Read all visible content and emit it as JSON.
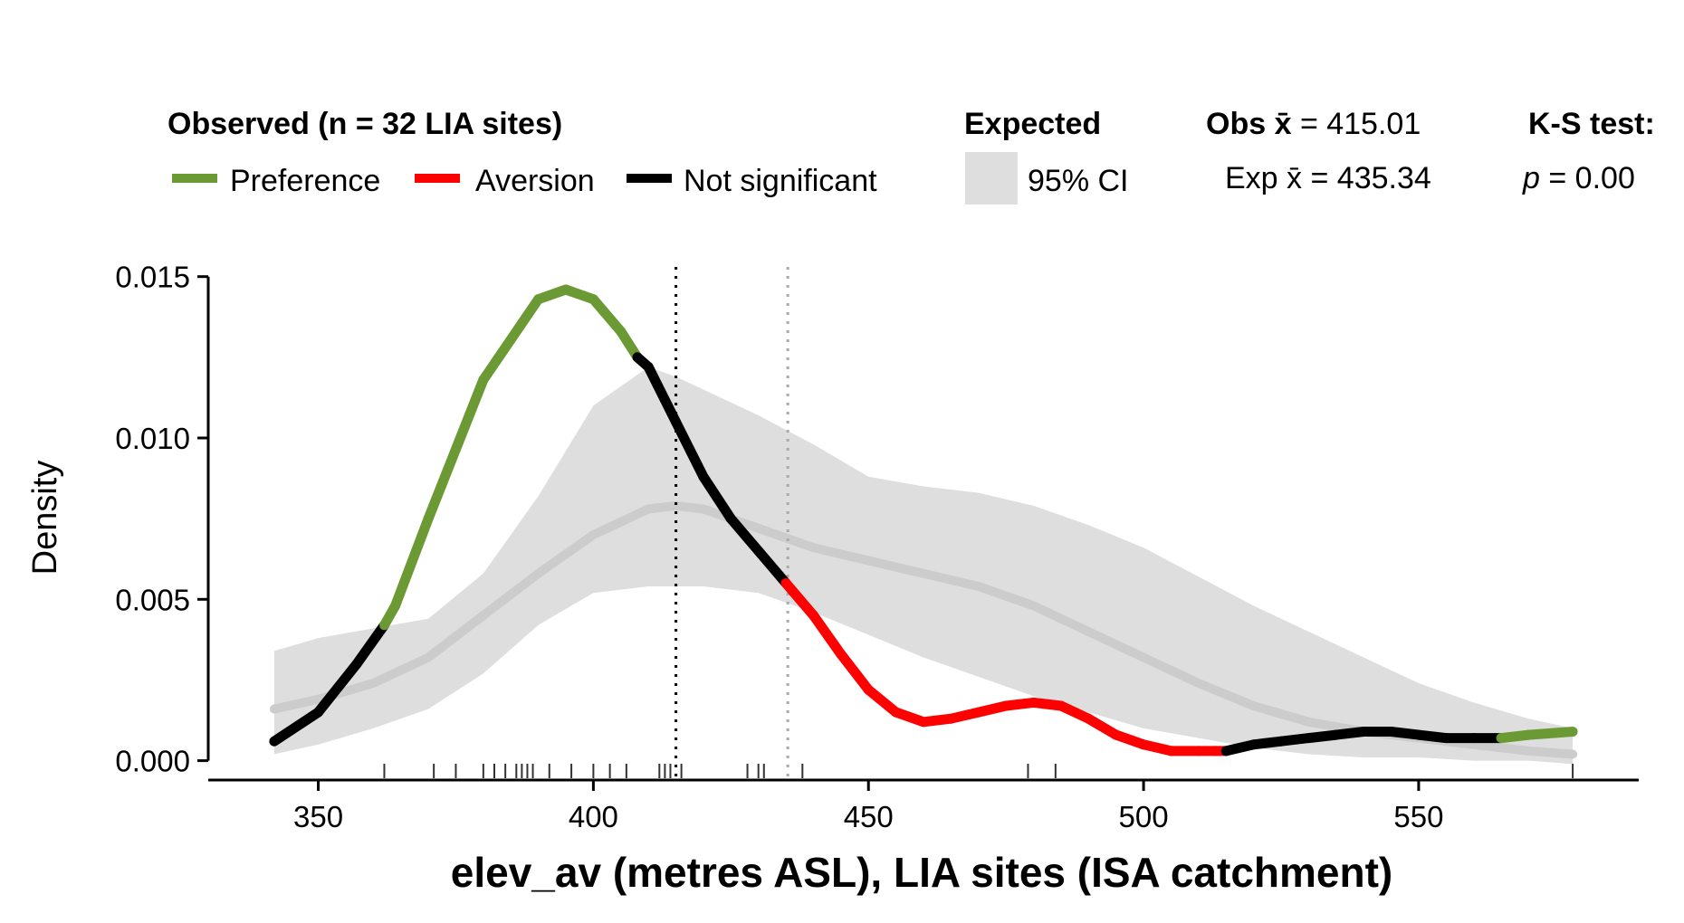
{
  "legend": {
    "observed_title": "Observed (n = 32 LIA sites)",
    "preference_label": "Preference",
    "aversion_label": "Aversion",
    "not_significant_label": "Not significant",
    "expected_title": "Expected",
    "ci_label": "95% CI",
    "obs_mean_prefix": "Obs x̄",
    "obs_mean_value": "= 415.01",
    "exp_mean_prefix": "Exp x̄",
    "exp_mean_value": "= 435.34",
    "ks_title": "K-S test:",
    "ks_p_symbol": "p",
    "ks_p_value": "= 0.00"
  },
  "colors": {
    "preference": "#6b9a35",
    "aversion": "#ff0000",
    "not_significant": "#000000",
    "ci_band": "#dedede",
    "expected_line": "#cccccc",
    "obs_mean_line": "#000000",
    "exp_mean_line": "#aaaaaa"
  },
  "chart_data": {
    "type": "line",
    "xlabel": "elev_av (metres ASL), LIA sites (ISA catchment)",
    "ylabel": "Density",
    "xlim": [
      330,
      590
    ],
    "ylim": [
      -0.0006,
      0.0153
    ],
    "x_ticks": [
      350,
      400,
      450,
      500,
      550
    ],
    "x_tick_labels": [
      "350",
      "400",
      "450",
      "500",
      "550"
    ],
    "y_ticks": [
      0.0,
      0.005,
      0.01,
      0.015
    ],
    "y_tick_labels": [
      "0.000",
      "0.005",
      "0.010",
      "0.015"
    ],
    "grid": false,
    "observed_density": {
      "x": [
        342,
        350,
        357,
        362,
        364,
        370,
        380,
        390,
        395,
        400,
        405,
        408,
        410,
        415,
        420,
        425,
        430,
        435,
        440,
        445,
        450,
        455,
        460,
        465,
        470,
        475,
        480,
        485,
        490,
        495,
        500,
        505,
        510,
        513,
        515,
        520,
        525,
        530,
        535,
        540,
        545,
        550,
        555,
        560,
        565,
        570,
        578
      ],
      "y": [
        0.0006,
        0.0015,
        0.003,
        0.0042,
        0.0048,
        0.0075,
        0.0118,
        0.0143,
        0.0146,
        0.0143,
        0.0133,
        0.0125,
        0.0122,
        0.0105,
        0.0088,
        0.0075,
        0.0065,
        0.0055,
        0.0045,
        0.0033,
        0.0022,
        0.0015,
        0.0012,
        0.0013,
        0.0015,
        0.0017,
        0.0018,
        0.0017,
        0.0013,
        0.0008,
        0.0005,
        0.0003,
        0.0003,
        0.0003,
        0.0003,
        0.0005,
        0.0006,
        0.0007,
        0.0008,
        0.0009,
        0.0009,
        0.0008,
        0.0007,
        0.0007,
        0.0007,
        0.0008,
        0.0009
      ],
      "significance": [
        "not_significant",
        "not_significant",
        "not_significant",
        "not_significant",
        "preference",
        "preference",
        "preference",
        "preference",
        "preference",
        "preference",
        "preference",
        "preference",
        "not_significant",
        "not_significant",
        "not_significant",
        "not_significant",
        "not_significant",
        "not_significant",
        "aversion",
        "aversion",
        "aversion",
        "aversion",
        "aversion",
        "aversion",
        "aversion",
        "aversion",
        "aversion",
        "aversion",
        "aversion",
        "aversion",
        "aversion",
        "aversion",
        "aversion",
        "aversion",
        "aversion",
        "not_significant",
        "not_significant",
        "not_significant",
        "not_significant",
        "not_significant",
        "not_significant",
        "not_significant",
        "not_significant",
        "not_significant",
        "not_significant",
        "preference",
        "preference"
      ]
    },
    "expected_density": {
      "x": [
        342,
        350,
        360,
        370,
        380,
        390,
        400,
        410,
        415,
        420,
        430,
        440,
        450,
        460,
        470,
        480,
        490,
        500,
        510,
        520,
        530,
        540,
        550,
        560,
        570,
        578
      ],
      "y": [
        0.0016,
        0.0019,
        0.0024,
        0.0032,
        0.0045,
        0.0058,
        0.007,
        0.0078,
        0.0079,
        0.0078,
        0.0072,
        0.0066,
        0.0062,
        0.0058,
        0.0054,
        0.0048,
        0.004,
        0.0032,
        0.0024,
        0.0017,
        0.0012,
        0.0009,
        0.0007,
        0.0005,
        0.0003,
        0.0002
      ]
    },
    "ci_lower": [
      0.0002,
      0.0005,
      0.001,
      0.0016,
      0.0027,
      0.0042,
      0.0052,
      0.0054,
      0.0054,
      0.0054,
      0.0052,
      0.0046,
      0.0039,
      0.0032,
      0.0026,
      0.002,
      0.0015,
      0.001,
      0.0007,
      0.0004,
      0.0002,
      0.0001,
      0.0001,
      0.0,
      0.0,
      -0.0001
    ],
    "ci_upper": [
      0.0034,
      0.0038,
      0.0041,
      0.0044,
      0.0058,
      0.0082,
      0.011,
      0.0122,
      0.0119,
      0.0115,
      0.0107,
      0.0098,
      0.0088,
      0.0085,
      0.0083,
      0.0079,
      0.0073,
      0.0066,
      0.0057,
      0.0048,
      0.004,
      0.0032,
      0.0024,
      0.0018,
      0.0013,
      0.001
    ],
    "observed_mean": 415.01,
    "expected_mean": 435.34,
    "rug_x": [
      362,
      371,
      375,
      380,
      382,
      384,
      386,
      387,
      388,
      389,
      392,
      396,
      400,
      403,
      406,
      412,
      413,
      414,
      416,
      428,
      430,
      431,
      438,
      479,
      484,
      578
    ]
  }
}
